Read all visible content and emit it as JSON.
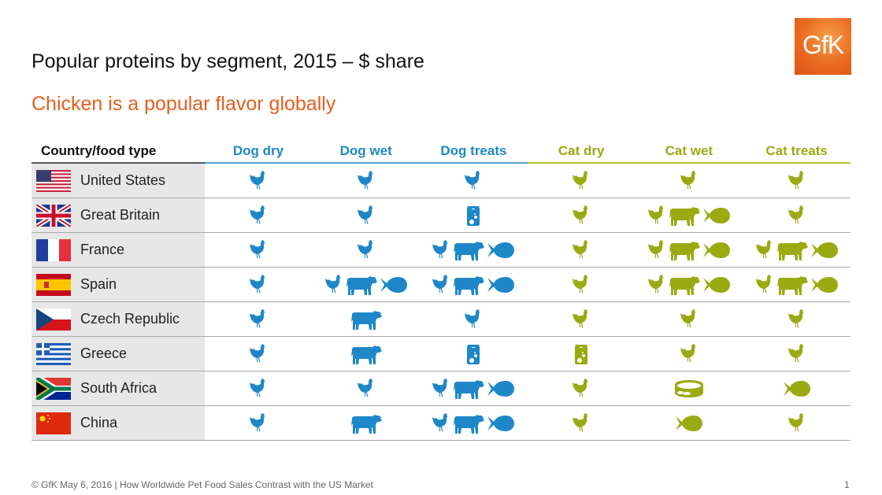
{
  "title": "Popular proteins by segment, 2015 – $ share",
  "subtitle": "Chicken is a popular flavor globally",
  "logo": "GfK",
  "colors": {
    "dog": "#1e87c7",
    "cat": "#9aaa12",
    "accent": "#e2601f"
  },
  "table": {
    "header": {
      "country": "Country/food type",
      "columns": [
        "Dog dry",
        "Dog wet",
        "Dog treats",
        "Cat dry",
        "Cat wet",
        "Cat treats"
      ]
    },
    "rows": [
      {
        "country": "United States",
        "flag": "us",
        "cells": [
          [
            "chicken"
          ],
          [
            "chicken"
          ],
          [
            "chicken"
          ],
          [
            "chicken"
          ],
          [
            "chicken"
          ],
          [
            "chicken"
          ]
        ]
      },
      {
        "country": "Great Britain",
        "flag": "gb",
        "cells": [
          [
            "chicken"
          ],
          [
            "chicken"
          ],
          [
            "bag"
          ],
          [
            "chicken"
          ],
          [
            "chicken",
            "cow",
            "fish"
          ],
          [
            "chicken"
          ]
        ]
      },
      {
        "country": "France",
        "flag": "fr",
        "cells": [
          [
            "chicken"
          ],
          [
            "chicken"
          ],
          [
            "chicken",
            "cow",
            "fish"
          ],
          [
            "chicken"
          ],
          [
            "chicken",
            "cow",
            "fish"
          ],
          [
            "chicken",
            "cow",
            "fish"
          ]
        ]
      },
      {
        "country": "Spain",
        "flag": "es",
        "cells": [
          [
            "chicken"
          ],
          [
            "chicken",
            "cow",
            "fish"
          ],
          [
            "chicken",
            "cow",
            "fish"
          ],
          [
            "chicken"
          ],
          [
            "chicken",
            "cow",
            "fish"
          ],
          [
            "chicken",
            "cow",
            "fish"
          ]
        ]
      },
      {
        "country": "Czech Republic",
        "flag": "cz",
        "cells": [
          [
            "chicken"
          ],
          [
            "cow"
          ],
          [
            "chicken"
          ],
          [
            "chicken"
          ],
          [
            "chicken"
          ],
          [
            "chicken"
          ]
        ]
      },
      {
        "country": "Greece",
        "flag": "gr",
        "cells": [
          [
            "chicken"
          ],
          [
            "cow"
          ],
          [
            "bag"
          ],
          [
            "bag"
          ],
          [
            "chicken"
          ],
          [
            "chicken"
          ]
        ]
      },
      {
        "country": "South Africa",
        "flag": "za",
        "cells": [
          [
            "chicken"
          ],
          [
            "chicken"
          ],
          [
            "chicken",
            "cow",
            "fish"
          ],
          [
            "chicken"
          ],
          [
            "can"
          ],
          [
            "fish"
          ]
        ]
      },
      {
        "country": "China",
        "flag": "cn",
        "cells": [
          [
            "chicken"
          ],
          [
            "cow"
          ],
          [
            "chicken",
            "cow",
            "fish"
          ],
          [
            "chicken"
          ],
          [
            "fish"
          ],
          [
            "chicken"
          ]
        ]
      }
    ]
  },
  "footer": "© GfK May 6, 2016 | How Worldwide Pet Food Sales Contrast with the US Market",
  "page_number": "1"
}
